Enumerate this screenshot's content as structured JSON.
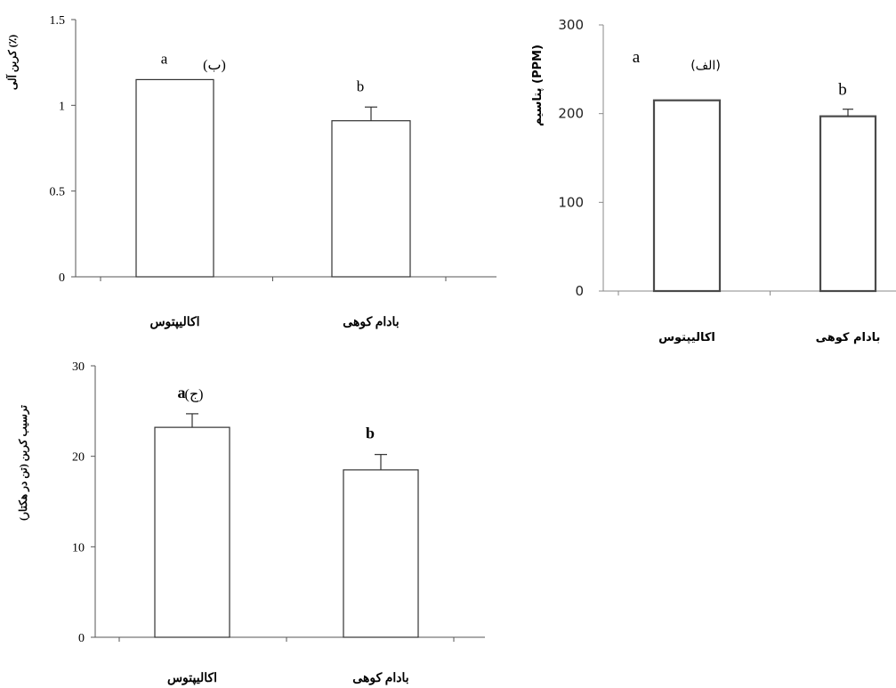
{
  "chart_data": [
    {
      "type": "bar",
      "title": "(ب)",
      "ylabel": "کربن آلی (٪)",
      "ylim": [
        0,
        1.5
      ],
      "yticks": [
        "0",
        "0.5",
        "1",
        "1.5"
      ],
      "categories": [
        "اکالیپتوس",
        "بادام کوهی"
      ],
      "values": [
        1.15,
        0.91
      ],
      "errors": [
        0,
        0.08
      ],
      "letters": [
        "a",
        "b"
      ]
    },
    {
      "type": "bar",
      "title": "(الف)",
      "ylabel": "پتاسیم (PPM)",
      "ylim": [
        0,
        300
      ],
      "yticks": [
        "0",
        "100",
        "200",
        "300"
      ],
      "categories": [
        "اکالیپتوس",
        "بادام کوهی"
      ],
      "values": [
        215,
        197
      ],
      "errors": [
        0,
        8
      ],
      "letters": [
        "a",
        "b"
      ]
    },
    {
      "type": "bar",
      "title": "(ج)",
      "ylabel": "ترسیب کربن (تن در هکتار)",
      "ylim": [
        0,
        30
      ],
      "yticks": [
        "0",
        "10",
        "20",
        "30"
      ],
      "categories": [
        "اکالیپتوس",
        "بادام کوهی"
      ],
      "values": [
        23.2,
        18.5
      ],
      "errors": [
        1.5,
        1.7
      ],
      "letters": [
        "a",
        "b"
      ]
    }
  ]
}
